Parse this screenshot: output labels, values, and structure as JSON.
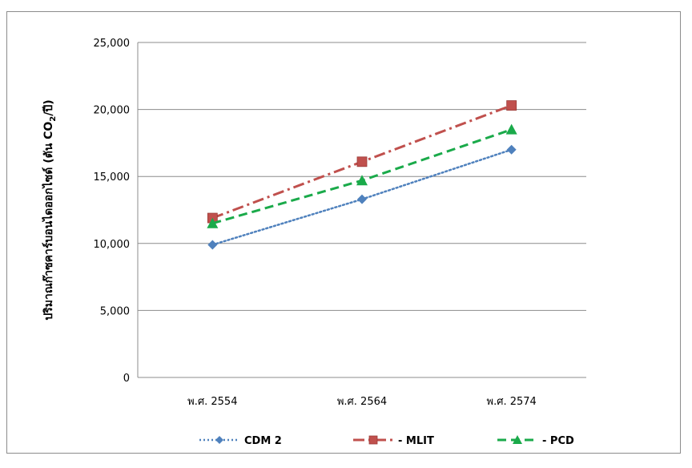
{
  "chart_data": {
    "type": "line",
    "categories": [
      "พ.ศ. 2554",
      "พ.ศ. 2564",
      "พ.ศ. 2574"
    ],
    "ylabel_main": "ปริมาณก๊าซคาร์บอนไดออกไซด์ (ตัน CO",
    "ylabel_sub": "2",
    "ylabel_tail": "/ปี)",
    "ylim": [
      0,
      25000
    ],
    "yticks": [
      0,
      5000,
      10000,
      15000,
      20000,
      25000
    ],
    "ytick_labels": [
      "0",
      "5,000",
      "10,000",
      "15,000",
      "20,000",
      "25,000"
    ],
    "grid": true,
    "legend_position": "bottom",
    "series": [
      {
        "name": "CDM 2",
        "values": [
          9900,
          13300,
          17000
        ],
        "color": "#4f81bd",
        "marker": "diamond",
        "dash": "dotted"
      },
      {
        "name": "MLIT",
        "legend_label": "- MLIT",
        "values": [
          11900,
          16100,
          20300
        ],
        "color": "#c0504d",
        "marker": "square",
        "dash": "dashdot"
      },
      {
        "name": "PCD",
        "legend_label": "- PCD",
        "values": [
          11500,
          14700,
          18500
        ],
        "color": "#1aaa4a",
        "marker": "triangle",
        "dash": "dashed"
      }
    ]
  }
}
